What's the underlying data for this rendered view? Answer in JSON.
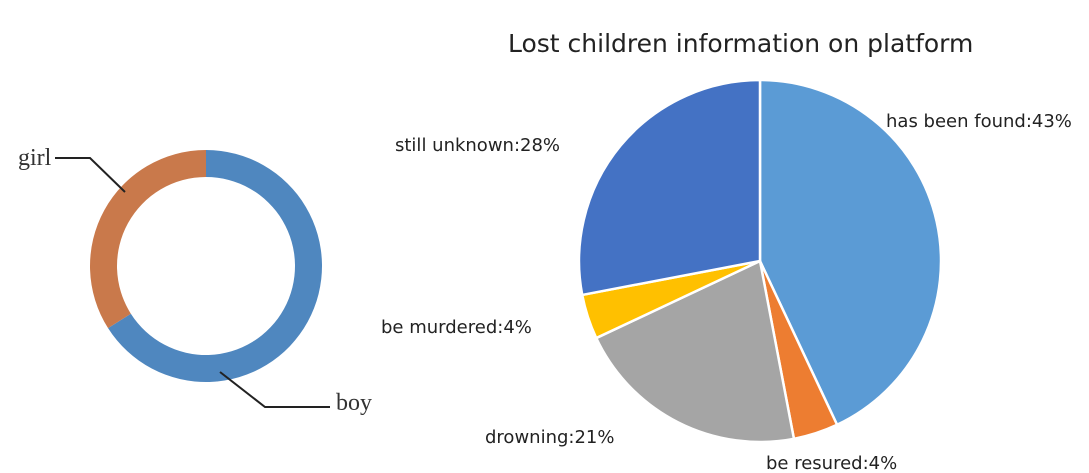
{
  "chart_data": [
    {
      "type": "pie",
      "variant": "donut",
      "categories": [
        "boy",
        "girl"
      ],
      "values": [
        66,
        34
      ],
      "colors": [
        "#4f87bf",
        "#c9794b"
      ],
      "leader_color": "#222222"
    },
    {
      "type": "pie",
      "title": "Lost children information on platform",
      "categories": [
        "has been found",
        "be resured",
        "drowning",
        "be murdered",
        "still unknown"
      ],
      "values": [
        43,
        4,
        21,
        4,
        28
      ],
      "labels": [
        "has been found:43%",
        "be resured:4%",
        "drowning:21%",
        "be murdered:4%",
        "still unknown:28%"
      ],
      "colors": [
        "#5b9bd5",
        "#ed7d31",
        "#a5a5a5",
        "#ffc000",
        "#4472c4"
      ]
    }
  ]
}
